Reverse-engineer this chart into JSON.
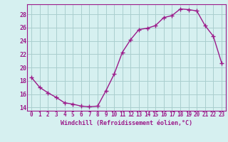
{
  "x": [
    0,
    1,
    2,
    3,
    4,
    5,
    6,
    7,
    8,
    9,
    10,
    11,
    12,
    13,
    14,
    15,
    16,
    17,
    18,
    19,
    20,
    21,
    22,
    23
  ],
  "y": [
    18.5,
    17.0,
    16.2,
    15.5,
    14.7,
    14.5,
    14.2,
    14.1,
    14.2,
    16.5,
    19.0,
    22.3,
    24.2,
    25.7,
    25.9,
    26.3,
    27.5,
    27.8,
    28.8,
    28.7,
    28.5,
    26.3,
    24.7,
    20.7
  ],
  "line_color": "#9b1a8a",
  "marker": "+",
  "marker_size": 4,
  "marker_linewidth": 1.0,
  "line_width": 1.0,
  "bg_color": "#d6f0f0",
  "grid_color": "#aacece",
  "xlabel": "Windchill (Refroidissement éolien,°C)",
  "xlabel_color": "#9b1a8a",
  "tick_color": "#9b1a8a",
  "ylim": [
    13.5,
    29.5
  ],
  "yticks": [
    14,
    16,
    18,
    20,
    22,
    24,
    26,
    28
  ],
  "xticks": [
    0,
    1,
    2,
    3,
    4,
    5,
    6,
    7,
    8,
    9,
    10,
    11,
    12,
    13,
    14,
    15,
    16,
    17,
    18,
    19,
    20,
    21,
    22,
    23
  ],
  "xlim": [
    -0.5,
    23.5
  ]
}
